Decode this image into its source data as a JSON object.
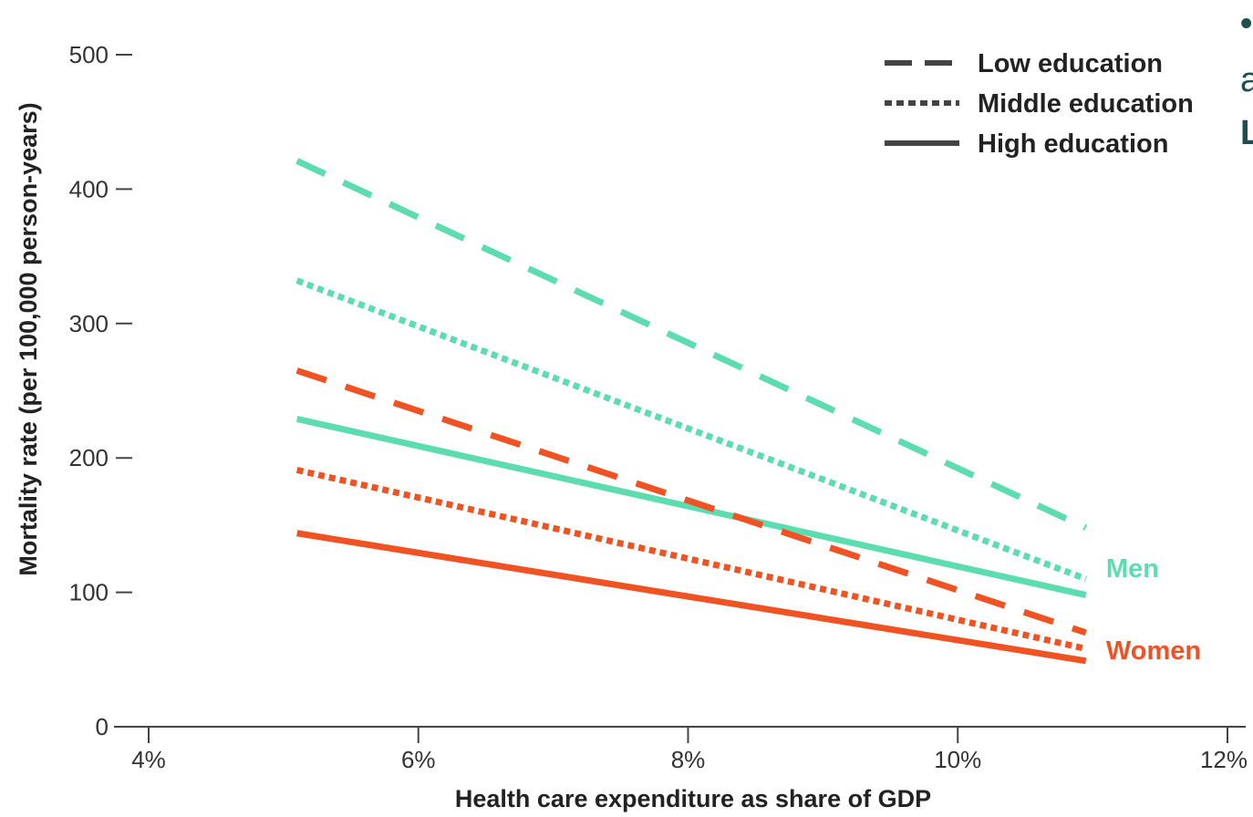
{
  "colors": {
    "men": "#5ddcb0",
    "women": "#ef5323",
    "axis": "#444444",
    "legend_line": "#444444"
  },
  "chart_data": {
    "type": "line",
    "title": "",
    "xlabel": "Health care expenditure as share of GDP",
    "ylabel": "Mortality rate (per 100,000 person-years)",
    "xlim": [
      4,
      12
    ],
    "ylim": [
      0,
      500
    ],
    "x_ticks": [
      {
        "value": 4,
        "label": "4%"
      },
      {
        "value": 6,
        "label": "6%"
      },
      {
        "value": 8,
        "label": "8%"
      },
      {
        "value": 10,
        "label": "10%"
      },
      {
        "value": 12,
        "label": "12%"
      }
    ],
    "y_ticks": [
      {
        "value": 0,
        "label": "0"
      },
      {
        "value": 100,
        "label": "100"
      },
      {
        "value": 200,
        "label": "200"
      },
      {
        "value": 300,
        "label": "300"
      },
      {
        "value": 400,
        "label": "400"
      },
      {
        "value": 500,
        "label": "500"
      }
    ],
    "legend_position": "top-right",
    "legend": [
      {
        "label": "Low education",
        "style": "dashed"
      },
      {
        "label": "Middle education",
        "style": "dotted"
      },
      {
        "label": "High education",
        "style": "solid"
      }
    ],
    "group_labels": [
      {
        "label": "Men",
        "color": "#5ddcb0",
        "anchor": [
          11.1,
          118
        ]
      },
      {
        "label": "Women",
        "color": "#ef5323",
        "anchor": [
          11.1,
          57
        ]
      }
    ],
    "series": [
      {
        "group": "Men",
        "education": "Low education",
        "style": "dashed",
        "color": "#5ddcb0",
        "x": [
          5.1,
          10.95
        ],
        "y": [
          421,
          148
        ]
      },
      {
        "group": "Men",
        "education": "Middle education",
        "style": "dotted",
        "color": "#5ddcb0",
        "x": [
          5.1,
          10.95
        ],
        "y": [
          332,
          110
        ]
      },
      {
        "group": "Men",
        "education": "High education",
        "style": "solid",
        "color": "#5ddcb0",
        "x": [
          5.1,
          10.95
        ],
        "y": [
          229,
          98
        ]
      },
      {
        "group": "Women",
        "education": "Low education",
        "style": "dashed",
        "color": "#ef5323",
        "x": [
          5.1,
          10.95
        ],
        "y": [
          265,
          70
        ]
      },
      {
        "group": "Women",
        "education": "Middle education",
        "style": "dotted",
        "color": "#ef5323",
        "x": [
          5.1,
          10.95
        ],
        "y": [
          191,
          58
        ]
      },
      {
        "group": "Women",
        "education": "High education",
        "style": "solid",
        "color": "#ef5323",
        "x": [
          5.1,
          10.95
        ],
        "y": [
          144,
          49
        ]
      }
    ]
  },
  "side_text": [
    "•",
    "a",
    "L"
  ]
}
